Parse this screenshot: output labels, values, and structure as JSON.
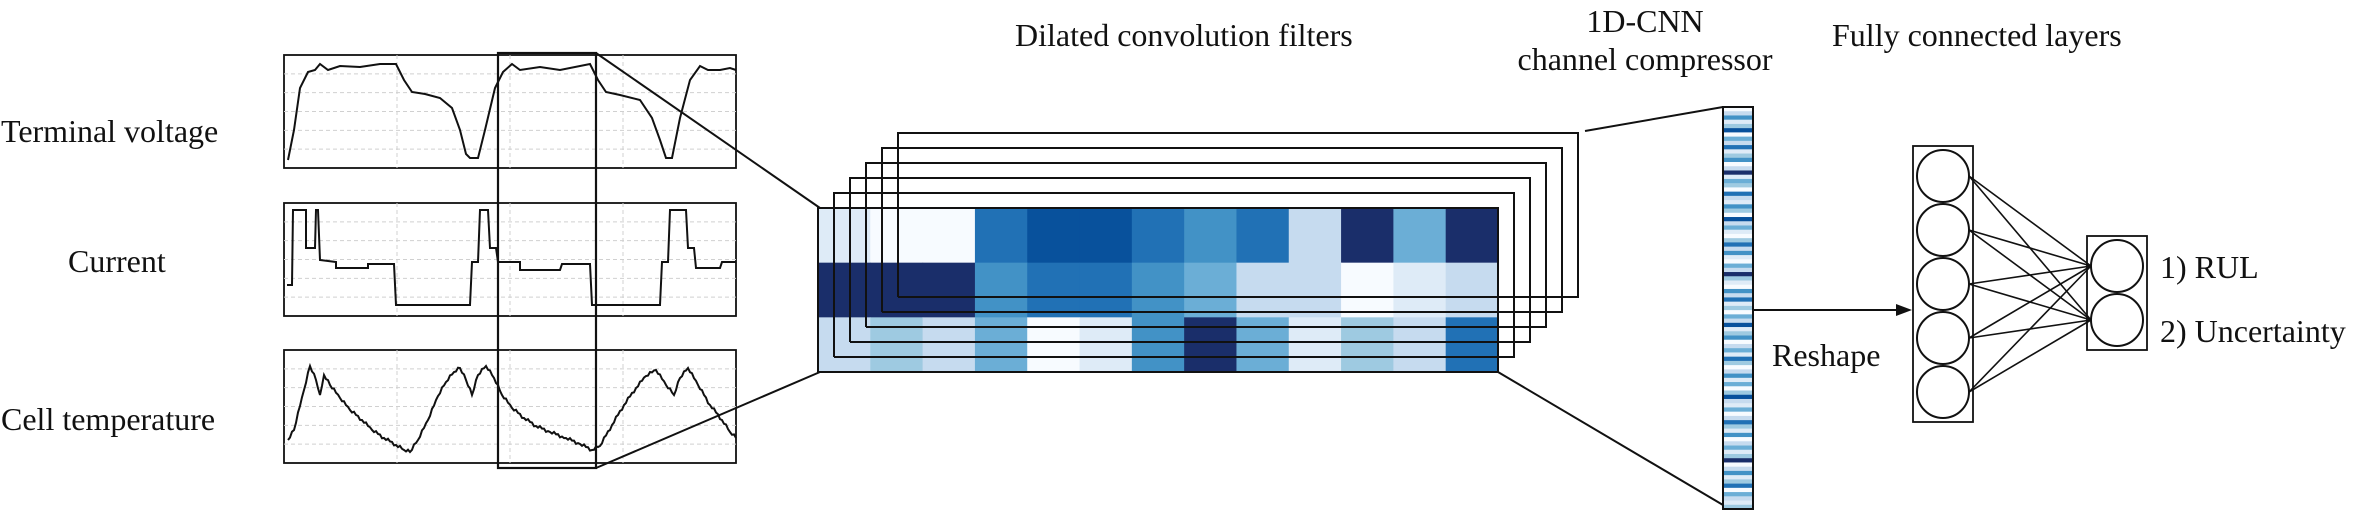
{
  "labels": {
    "terminal_voltage": "Terminal voltage",
    "current": "Current",
    "cell_temperature": "Cell temperature",
    "dilated_filters": "Dilated convolution filters",
    "compressor_line1": "1D-CNN",
    "compressor_line2": "channel compressor",
    "fully_connected": "Fully connected layers",
    "reshape": "Reshape",
    "out_rul": "1) RUL",
    "out_uncertainty": "2) Uncertainty"
  },
  "colors": {
    "ink": "#111111",
    "plot_line": "#111111",
    "grid": "#d0d0d0",
    "heat_scale": [
      "#f7fbff",
      "#deebf7",
      "#c6dbef",
      "#9ecae1",
      "#6baed6",
      "#4292c6",
      "#2171b5",
      "#08519c",
      "#1a2e6a"
    ]
  },
  "heatmap": {
    "rows": 3,
    "cols": 13,
    "levels": [
      [
        1,
        0,
        0,
        6,
        7,
        7,
        6,
        5,
        6,
        2,
        8,
        4,
        8
      ],
      [
        8,
        8,
        8,
        5,
        6,
        6,
        5,
        4,
        2,
        2,
        0,
        1,
        2
      ],
      [
        2,
        3,
        2,
        4,
        0,
        1,
        5,
        8,
        4,
        1,
        3,
        2,
        6
      ]
    ]
  },
  "compressor_stripes": [
    0,
    2,
    5,
    1,
    3,
    7,
    0,
    4,
    2,
    6,
    1,
    3,
    5,
    0,
    2,
    8,
    1,
    4,
    3,
    0,
    6,
    2,
    1,
    5,
    3,
    0,
    7,
    2,
    4,
    1,
    0,
    3,
    6,
    2,
    5,
    1,
    0,
    4,
    2,
    8,
    3,
    1,
    0,
    5,
    2,
    6,
    1,
    3,
    0,
    4,
    2,
    7,
    1,
    3,
    5,
    0,
    2,
    4,
    1,
    6,
    3,
    0,
    2,
    5,
    1,
    4,
    0,
    3,
    7,
    2,
    1,
    4,
    0,
    2,
    6,
    3,
    1,
    5,
    0,
    2,
    4,
    1,
    3,
    8,
    0,
    2,
    5,
    1,
    3,
    6,
    0,
    4,
    2,
    1,
    3
  ],
  "fc_network": {
    "hidden_nodes": 5,
    "output_nodes": 2
  }
}
